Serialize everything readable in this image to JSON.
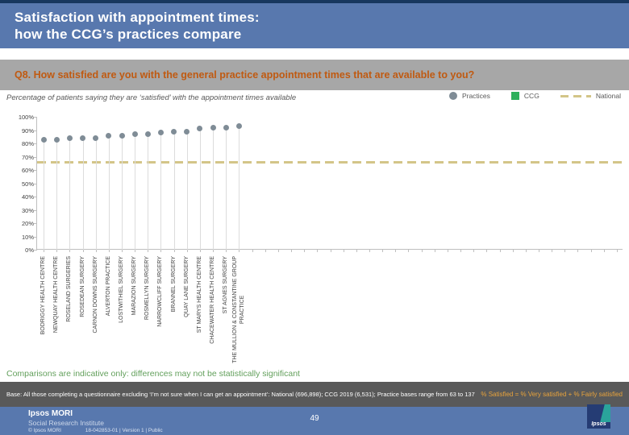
{
  "header": {
    "title_line1": "Satisfaction with appointment times:",
    "title_line2": "how the CCG’s practices compare"
  },
  "question_banner": "Q8. How satisfied are you with the general practice appointment times that are available to you?",
  "chart": {
    "subtitle": "Percentage of patients saying they are ‘satisfied’ with the appointment times available",
    "legend": [
      {
        "label": "Practices",
        "icon": "practice-dot",
        "color": "#7f8c96"
      },
      {
        "label": "CCG",
        "icon": "ccg-square",
        "color": "#2eb05c"
      },
      {
        "label": "National",
        "icon": "national-dashed-line",
        "color": "#d3c588"
      }
    ]
  },
  "chart_data": {
    "type": "scatter",
    "title": "Percentage of patients saying they are ‘satisfied’ with the appointment times available",
    "categories": [
      "BODRIGGY HEALTH CENTRE",
      "NEWQUAY HEALTH CENTRE",
      "ROSELAND SURGERIES",
      "ROSEDEAN SURGERY",
      "CARNON DOWNS SURGERY",
      "ALVERTON PRACTICE",
      "LOSTWITHIEL SURGERY",
      "MARAZION SURGERY",
      "ROSMELLYN SURGERY",
      "NARROWCLIFF SURGERY",
      "BRANNEL SURGERY",
      "QUAY LANE SURGERY",
      "ST MARYS HEALTH CENTRE",
      "CHACEWATER HEALTH CENTRE",
      "ST AGNES SURGERY",
      "THE MULLION & CONSTANTINE GROUP\nPRACTICE"
    ],
    "values": [
      83,
      83,
      84,
      84,
      84,
      86,
      86,
      87,
      87,
      88,
      89,
      89,
      91,
      92,
      92,
      93
    ],
    "national_line_value": 66,
    "ylabel_format": "percent",
    "ylim": [
      0,
      100
    ],
    "ytick_step": 10,
    "total_x_slots": 45,
    "grid": false,
    "point_color": "#7f8c96",
    "stem_color": "#dcdcdc",
    "national_color": "#d3c588",
    "axis_color": "#bfbfbf"
  },
  "notes": {
    "comparison": "Comparisons are indicative only: differences may not be statistically significant"
  },
  "base_bar": {
    "base_text": "Base: All those completing a questionnaire excluding ‘I’m not sure when I can get an appointment’: National (696,898); CCG 2019 (6,531); Practice bases range from 63 to 137",
    "satisfied_note": "% Satisfied = % Very satisfied + % Fairly satisfied"
  },
  "footer": {
    "brand_line1": "Ipsos MORI",
    "brand_line2": "Social Research Institute",
    "copyright": "© Ipsos MORI",
    "doc_ref": "18-042853-01 | Version 1 | Public",
    "page_number": "49",
    "logo_text": "Ipsos"
  }
}
